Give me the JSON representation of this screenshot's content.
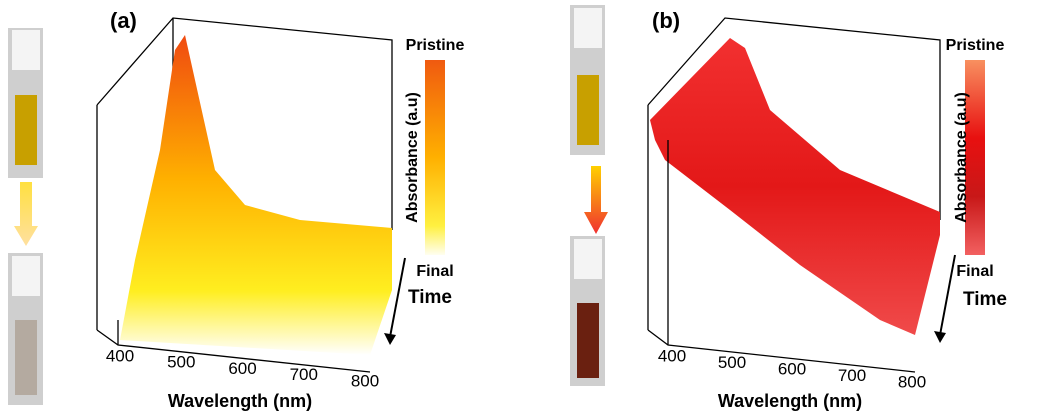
{
  "panels": [
    {
      "label": "(a)",
      "x_label": "Wavelength (nm)",
      "x_ticks": [
        400,
        500,
        600,
        700,
        800
      ],
      "colorbar_label": "Absorbance (a.u)",
      "colorbar_top": "Pristine",
      "colorbar_bottom": "Final",
      "arrow_label": "Time"
    },
    {
      "label": "(b)",
      "x_label": "Wavelength (nm)",
      "x_ticks": [
        400,
        500,
        600,
        700,
        800
      ],
      "colorbar_label": "Absorbance (a.u)",
      "colorbar_top": "Pristine",
      "colorbar_bottom": "Final",
      "arrow_label": "Time"
    }
  ]
}
